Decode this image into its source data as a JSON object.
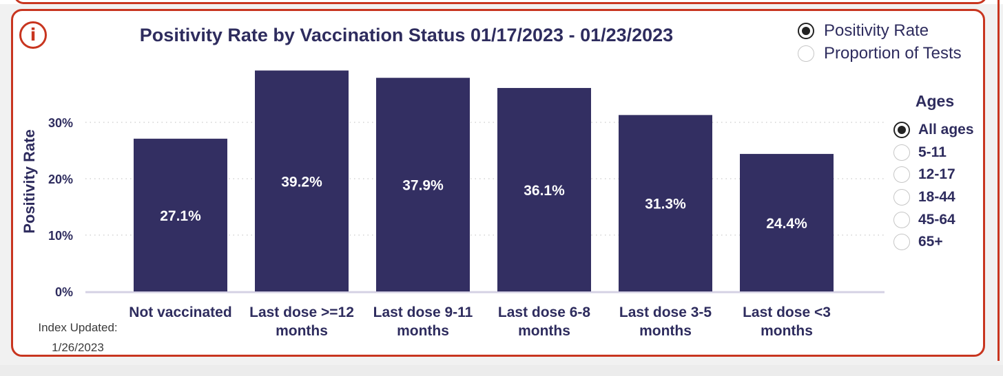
{
  "title": "Positivity Rate by Vaccination Status 01/17/2023 - 01/23/2023",
  "info_icon": {
    "name": "info-icon",
    "glyph": "i"
  },
  "metric_options": [
    {
      "label": "Positivity Rate",
      "checked": true
    },
    {
      "label": "Proportion of Tests",
      "checked": false
    }
  ],
  "ages": {
    "title": "Ages",
    "options": [
      {
        "label": "All ages",
        "checked": true
      },
      {
        "label": "5-11",
        "checked": false
      },
      {
        "label": "12-17",
        "checked": false
      },
      {
        "label": "18-44",
        "checked": false
      },
      {
        "label": "45-64",
        "checked": false
      },
      {
        "label": "65+",
        "checked": false
      }
    ]
  },
  "index_updated": {
    "label": "Index Updated:",
    "date": "1/26/2023"
  },
  "colors": {
    "bar": "#332f62",
    "accent": "#c8351f",
    "text": "#2e2c5e"
  },
  "chart_data": {
    "type": "bar",
    "title": "Positivity Rate by Vaccination Status 01/17/2023 - 01/23/2023",
    "xlabel": "",
    "ylabel": "Positivity Rate",
    "categories": [
      [
        "Not vaccinated"
      ],
      [
        "Last dose >=12",
        "months"
      ],
      [
        "Last dose 9-11",
        "months"
      ],
      [
        "Last dose 6-8",
        "months"
      ],
      [
        "Last dose 3-5",
        "months"
      ],
      [
        "Last dose <3",
        "months"
      ]
    ],
    "values": [
      27.1,
      39.2,
      37.9,
      36.1,
      31.3,
      24.4
    ],
    "data_labels": [
      "27.1%",
      "39.2%",
      "37.9%",
      "36.1%",
      "31.3%",
      "24.4%"
    ],
    "yticks": [
      0,
      10,
      20,
      30
    ],
    "ytick_labels": [
      "0%",
      "10%",
      "20%",
      "30%"
    ],
    "grid": true,
    "legend": "none"
  }
}
